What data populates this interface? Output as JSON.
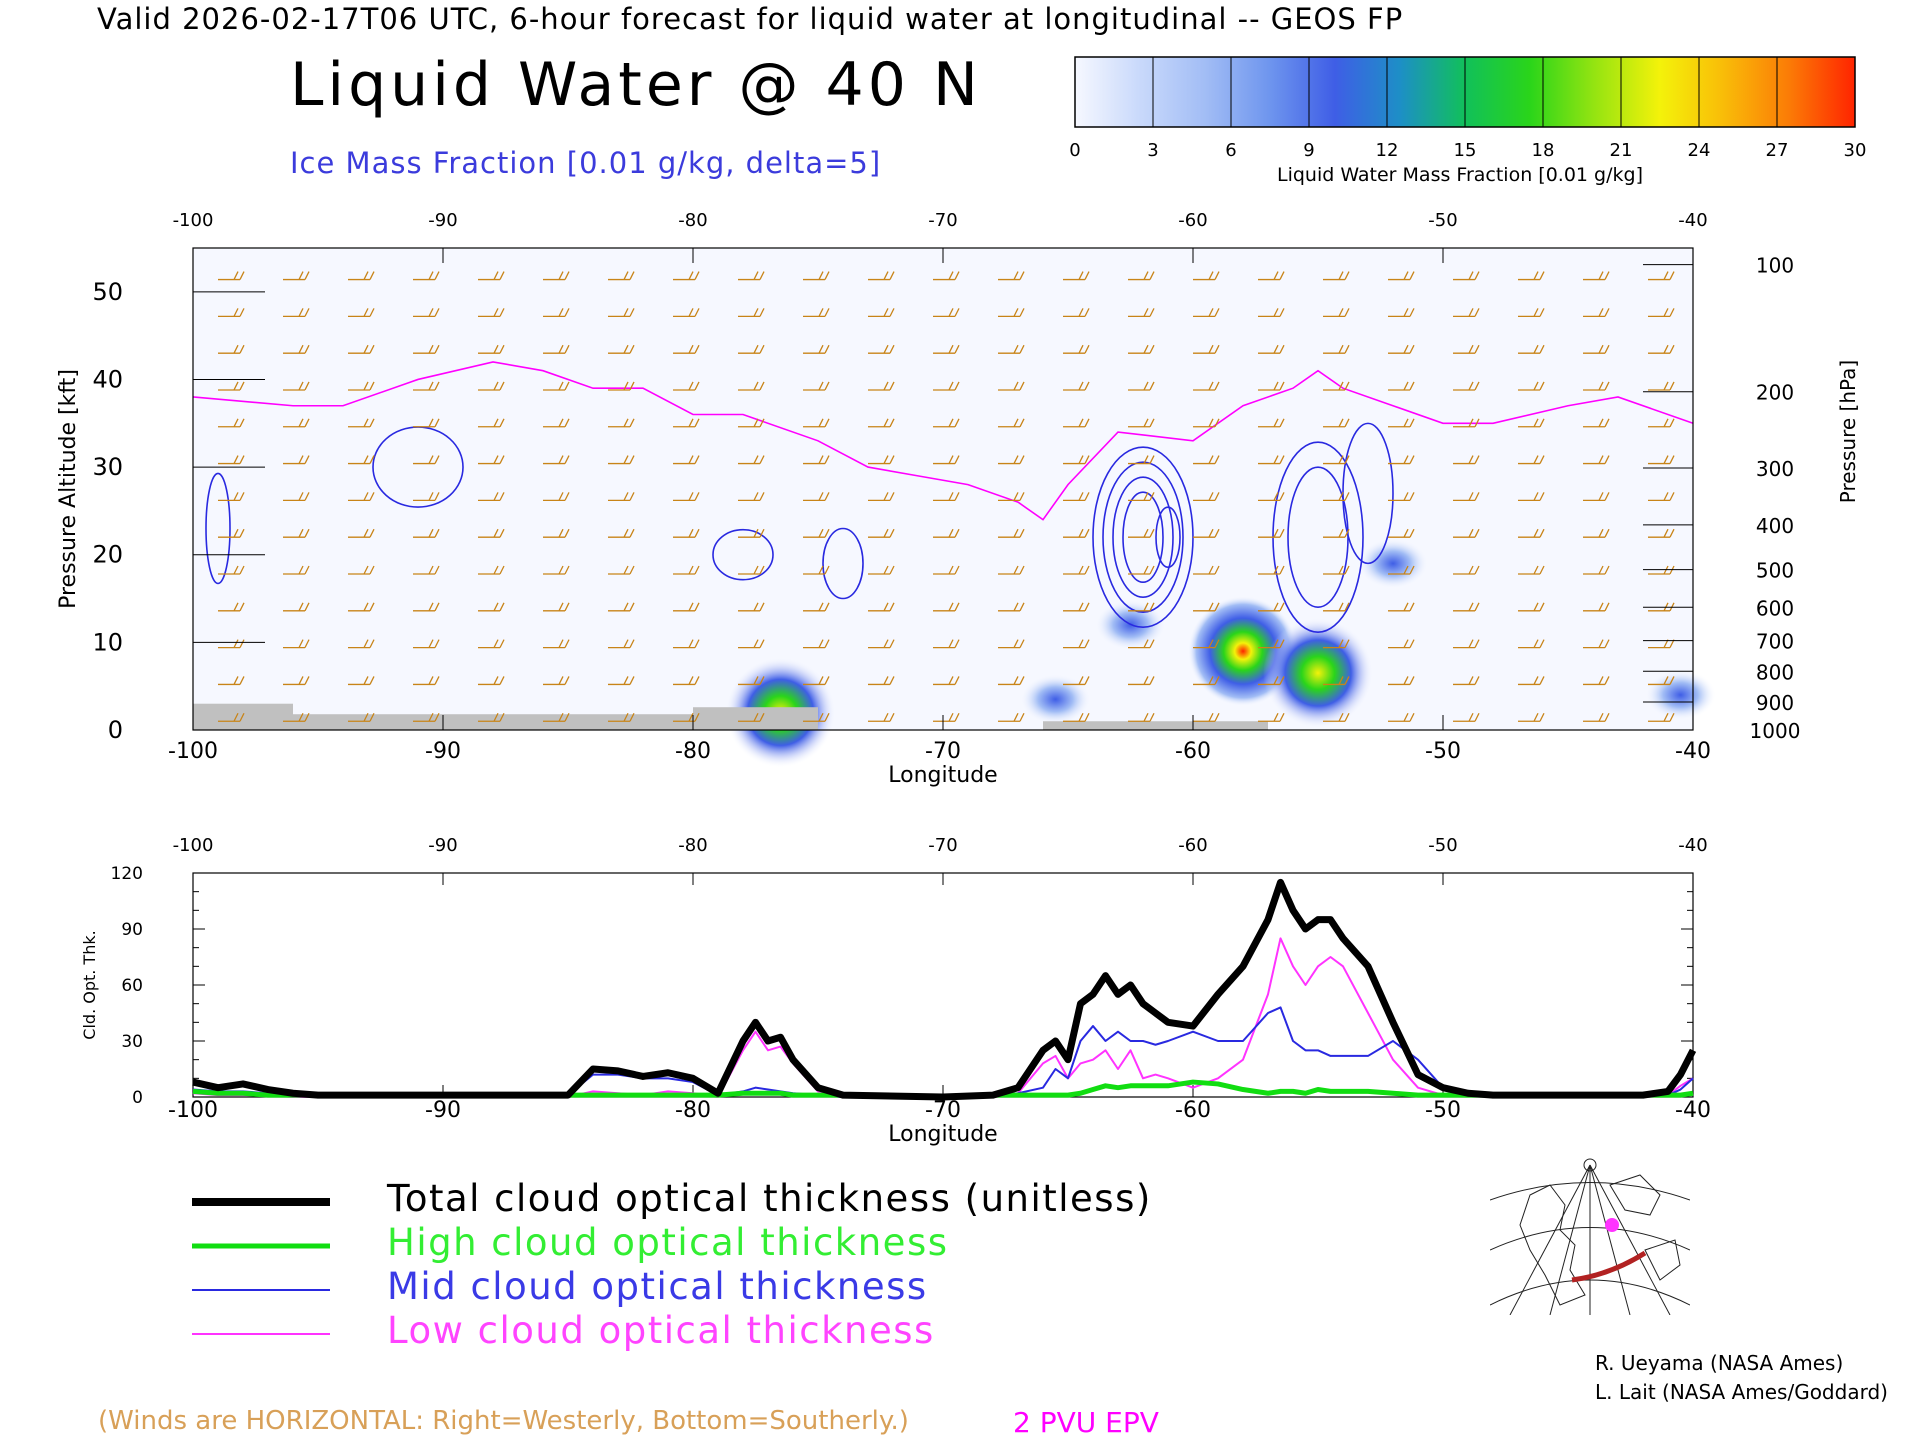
{
  "header": {
    "title": "Valid 2026-02-17T06 UTC, 6-hour forecast for liquid water at longitudinal -- GEOS FP",
    "main_title": "Liquid Water @ 40 N",
    "ice_label": "Ice Mass Fraction [0.01 g/kg, delta=5]"
  },
  "colorbar": {
    "title": "Liquid Water Mass Fraction [0.01 g/kg]",
    "ticks": [
      "0",
      "3",
      "6",
      "9",
      "12",
      "15",
      "18",
      "21",
      "24",
      "27",
      "30"
    ],
    "colors": [
      "#f6f8ff",
      "#c9d9fb",
      "#a2bdf5",
      "#6e95ee",
      "#3f5ee6",
      "#1d8fc6",
      "#11c05a",
      "#2ad51a",
      "#96e411",
      "#f4f20a",
      "#f9bb08",
      "#fb7a06",
      "#ff2400"
    ]
  },
  "chart_data": [
    {
      "type": "heatmap",
      "title": "Liquid Water @ 40 N",
      "xlabel": "Longitude",
      "ylabel": "Pressure Altitude [kft]",
      "y2label": "Pressure [hPa]",
      "xlim": [
        -100,
        -40
      ],
      "ylim": [
        0,
        55
      ],
      "xticks": [
        "-100",
        "-90",
        "-80",
        "-70",
        "-60",
        "-50",
        "-40"
      ],
      "yticks": [
        "0",
        "10",
        "20",
        "30",
        "40",
        "50"
      ],
      "pressure_ticks": [
        "100",
        "200",
        "300",
        "400",
        "500",
        "600",
        "700",
        "800",
        "900",
        "1000"
      ],
      "pressure_tick_alt": [
        53.1,
        38.6,
        29.9,
        23.4,
        18.3,
        14.0,
        10.2,
        6.7,
        3.2,
        0.0
      ],
      "liquid_water_blobs": [
        {
          "lon": -58.0,
          "alt": 9.0,
          "max": 30
        },
        {
          "lon": -55.0,
          "alt": 6.5,
          "max": 22
        },
        {
          "lon": -62.5,
          "alt": 12.0,
          "max": 11
        },
        {
          "lon": -76.5,
          "alt": 2.0,
          "max": 19
        },
        {
          "lon": -65.5,
          "alt": 3.5,
          "max": 12
        },
        {
          "lon": -52.0,
          "alt": 19.0,
          "max": 6
        },
        {
          "lon": -40.5,
          "alt": 4.0,
          "max": 8
        }
      ],
      "epv_2pvu_alt_kft": [
        [
          -100,
          38
        ],
        [
          -96,
          37
        ],
        [
          -94,
          37
        ],
        [
          -91,
          40
        ],
        [
          -88,
          42
        ],
        [
          -86,
          41
        ],
        [
          -84,
          39
        ],
        [
          -82,
          39
        ],
        [
          -80,
          36
        ],
        [
          -78,
          36
        ],
        [
          -75,
          33
        ],
        [
          -73,
          30
        ],
        [
          -71,
          29
        ],
        [
          -69,
          28
        ],
        [
          -67,
          26
        ],
        [
          -66,
          24
        ],
        [
          -65,
          28
        ],
        [
          -63,
          34
        ],
        [
          -60,
          33
        ],
        [
          -58,
          37
        ],
        [
          -56,
          39
        ],
        [
          -55,
          41
        ],
        [
          -54,
          39
        ],
        [
          -52,
          37
        ],
        [
          -50,
          35
        ],
        [
          -48,
          35
        ],
        [
          -45,
          37
        ],
        [
          -43,
          38
        ],
        [
          -40,
          35
        ]
      ]
    },
    {
      "type": "line",
      "xlabel": "Longitude",
      "ylabel": "Cld. Opt. Thk.",
      "xlim": [
        -100,
        -40
      ],
      "ylim": [
        0,
        120
      ],
      "yticks": [
        "0",
        "30",
        "60",
        "90",
        "120"
      ],
      "xticks": [
        "-100",
        "-90",
        "-80",
        "-70",
        "-60",
        "-50",
        "-40"
      ],
      "x": [
        -100,
        -99,
        -98,
        -97,
        -96,
        -95,
        -90,
        -85,
        -84,
        -83,
        -82,
        -81,
        -80,
        -79,
        -78,
        -77.5,
        -77,
        -76.5,
        -76,
        -75,
        -74,
        -70,
        -68,
        -67,
        -66,
        -65.5,
        -65,
        -64.5,
        -64,
        -63.5,
        -63,
        -62.5,
        -62,
        -61.5,
        -61,
        -60,
        -59,
        -58,
        -57,
        -56.5,
        -56,
        -55.5,
        -55,
        -54.5,
        -54,
        -53,
        -52,
        -51,
        -50,
        -49,
        -48,
        -45,
        -42,
        -41,
        -40.5,
        -40
      ],
      "series": [
        {
          "name": "Total cloud optical thickness (unitless)",
          "color": "#000000",
          "width": 7,
          "values": [
            8,
            5,
            7,
            4,
            2,
            1,
            1,
            1,
            15,
            14,
            11,
            13,
            10,
            2,
            30,
            40,
            30,
            32,
            20,
            5,
            1,
            0,
            1,
            5,
            25,
            30,
            20,
            50,
            55,
            65,
            55,
            60,
            50,
            45,
            40,
            38,
            55,
            70,
            95,
            115,
            100,
            90,
            95,
            95,
            85,
            70,
            40,
            12,
            5,
            2,
            1,
            1,
            1,
            3,
            12,
            25
          ]
        },
        {
          "name": "High cloud optical thickness",
          "color": "#11dd11",
          "width": 5,
          "values": [
            3,
            2,
            2,
            1,
            1,
            1,
            1,
            1,
            1,
            1,
            1,
            1,
            1,
            1,
            2,
            2,
            2,
            2,
            1,
            1,
            1,
            0,
            1,
            1,
            1,
            1,
            1,
            2,
            4,
            6,
            5,
            6,
            6,
            6,
            6,
            8,
            7,
            4,
            2,
            3,
            3,
            2,
            4,
            3,
            3,
            3,
            2,
            1,
            1,
            1,
            1,
            1,
            1,
            1,
            1,
            2
          ]
        },
        {
          "name": "Mid cloud optical thickness",
          "color": "#2929e0",
          "width": 2,
          "values": [
            4,
            3,
            3,
            2,
            1,
            1,
            1,
            1,
            12,
            12,
            10,
            10,
            8,
            1,
            3,
            5,
            4,
            3,
            2,
            1,
            0,
            0,
            0,
            2,
            5,
            15,
            10,
            30,
            38,
            30,
            35,
            30,
            30,
            28,
            30,
            35,
            30,
            30,
            45,
            48,
            30,
            25,
            25,
            22,
            22,
            22,
            30,
            20,
            5,
            1,
            1,
            1,
            1,
            1,
            4,
            10
          ]
        },
        {
          "name": "Low cloud optical thickness",
          "color": "#ff33ff",
          "width": 2,
          "values": [
            2,
            1,
            1,
            1,
            0,
            0,
            0,
            0,
            3,
            2,
            1,
            3,
            2,
            0,
            25,
            35,
            25,
            27,
            18,
            3,
            1,
            0,
            0,
            2,
            18,
            22,
            10,
            18,
            20,
            25,
            15,
            25,
            10,
            12,
            10,
            5,
            10,
            20,
            55,
            85,
            70,
            60,
            70,
            75,
            70,
            45,
            20,
            5,
            1,
            1,
            0,
            0,
            0,
            1,
            6,
            10
          ]
        }
      ]
    }
  ],
  "legend": {
    "total": "Total cloud optical thickness (unitless)",
    "high": "High cloud optical thickness",
    "mid": "Mid cloud optical thickness",
    "low": "Low cloud optical thickness"
  },
  "credits": {
    "line1": "R. Ueyama (NASA Ames)",
    "line2": "L. Lait (NASA Ames/Goddard)"
  },
  "notes": {
    "winds": "(Winds are HORIZONTAL: Right=Westerly, Bottom=Southerly.)",
    "epv": "2 PVU EPV"
  }
}
